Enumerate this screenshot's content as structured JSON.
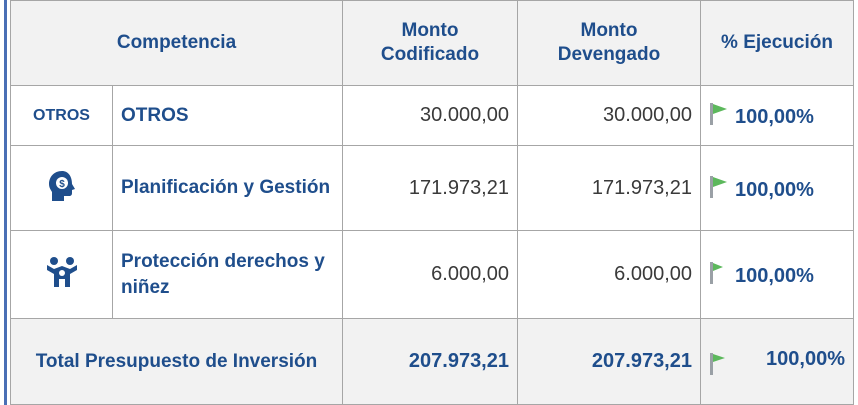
{
  "table": {
    "header": [
      "Competencia",
      "Monto Codificado",
      "Monto Devengado",
      "% Ejecución"
    ],
    "rows": [
      {
        "icon_label": "OTROS",
        "competencia": "OTROS",
        "codificado": "30.000,00",
        "devengado": "30.000,00",
        "ejecucion": "100,00%"
      },
      {
        "competencia": "Planificación y Gestión",
        "codificado": "171.973,21",
        "devengado": "171.973,21",
        "ejecucion": "100,00%"
      },
      {
        "competencia": "Protección derechos y niñez",
        "codificado": "6.000,00",
        "devengado": "6.000,00",
        "ejecucion": "100,00%"
      }
    ],
    "total": {
      "label": "Total Presupuesto de Inversión",
      "codificado": "207.973,21",
      "devengado": "207.973,21",
      "ejecucion": "100,00%"
    }
  }
}
